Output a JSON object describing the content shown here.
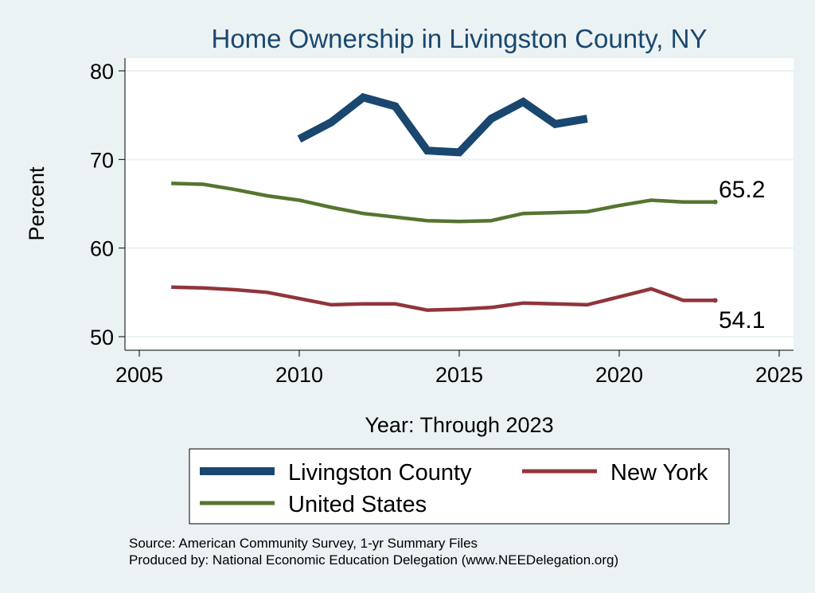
{
  "chart_data": {
    "type": "line",
    "title": "Home Ownership in Livingston County, NY",
    "xlabel": "Year: Through 2023",
    "ylabel": "Percent",
    "xlim": [
      2005,
      2025
    ],
    "ylim": [
      50,
      80
    ],
    "x_ticks": [
      2005,
      2010,
      2015,
      2020,
      2025
    ],
    "y_ticks": [
      50,
      60,
      70,
      80
    ],
    "grid": true,
    "series": [
      {
        "name": "Livingston County",
        "color": "#1a476f",
        "x": [
          2010,
          2011,
          2012,
          2013,
          2014,
          2015,
          2016,
          2017,
          2018,
          2019
        ],
        "values": [
          72.3,
          74.2,
          77.0,
          76.0,
          71.0,
          70.8,
          74.6,
          76.5,
          74.0,
          74.6
        ]
      },
      {
        "name": "New York",
        "color": "#90353b",
        "x": [
          2006,
          2007,
          2008,
          2009,
          2010,
          2011,
          2012,
          2013,
          2014,
          2015,
          2016,
          2017,
          2018,
          2019,
          2020,
          2021,
          2022,
          2023
        ],
        "values": [
          55.6,
          55.5,
          55.3,
          55.0,
          54.3,
          53.6,
          53.7,
          53.7,
          53.0,
          53.1,
          53.3,
          53.8,
          53.7,
          53.6,
          54.5,
          55.4,
          54.1,
          54.1
        ],
        "end_label": "54.1"
      },
      {
        "name": "United States",
        "color": "#55752f",
        "x": [
          2006,
          2007,
          2008,
          2009,
          2010,
          2011,
          2012,
          2013,
          2014,
          2015,
          2016,
          2017,
          2018,
          2019,
          2020,
          2021,
          2022,
          2023
        ],
        "values": [
          67.3,
          67.2,
          66.6,
          65.9,
          65.4,
          64.6,
          63.9,
          63.5,
          63.1,
          63.0,
          63.1,
          63.9,
          64.0,
          64.1,
          64.8,
          65.4,
          65.2,
          65.2
        ],
        "end_label": "65.2"
      }
    ],
    "legend": {
      "position": "bottom",
      "entries": [
        "Livingston County",
        "New York",
        "United States"
      ]
    }
  },
  "notes": {
    "source": "Source: American Community Survey, 1-yr Summary Files",
    "produced_by": "Produced by: National Economic Education Delegation (www.NEEDelegation.org)"
  },
  "colors": {
    "background": "#eaf2f3",
    "plot_background": "#ffffff",
    "grid": "#eaf2f3",
    "title": "#1a476f"
  }
}
